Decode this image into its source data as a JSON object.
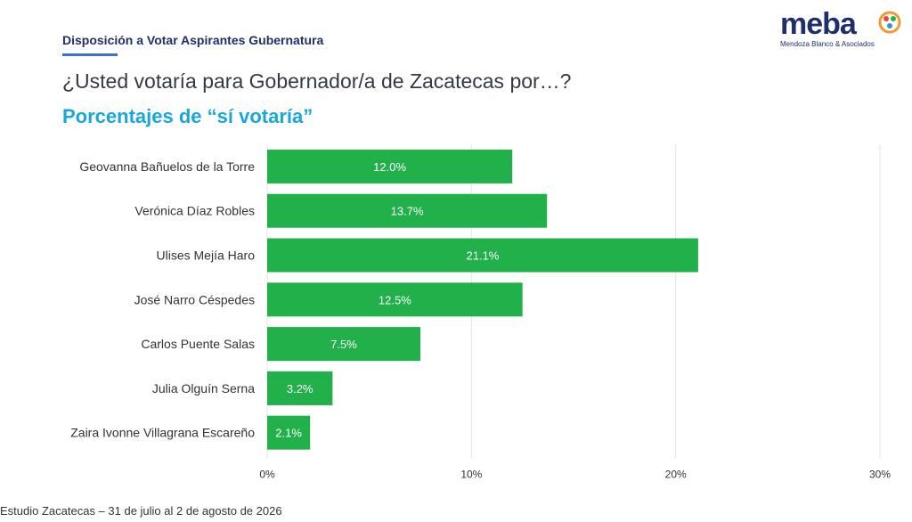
{
  "header": {
    "kicker": "Disposición a Votar Aspirantes Gubernatura",
    "question": "¿Usted votaría para Gobernador/a de Zacatecas por…?",
    "subtitle": "Porcentajes de “sí votaría”"
  },
  "logo": {
    "word": "meba",
    "sub": "Mendoza Blanco & Asociados",
    "icon": "meba-logo-mark-icon"
  },
  "footer": {
    "text": "Estudio Zacatecas – 31 de julio al 2 de agosto de 2026"
  },
  "colors": {
    "bar": "#22b04b",
    "bar_label": "#ffffff",
    "grid": "#e3e3e3",
    "kicker": "#1f2f6b",
    "subtitle": "#1aa6d9",
    "rule": "#3b6fd0"
  },
  "chart_data": {
    "type": "bar",
    "orientation": "horizontal",
    "categories": [
      "Geovanna Bañuelos de la Torre",
      "Verónica Díaz Robles",
      "Ulises Mejía Haro",
      "José Narro Céspedes",
      "Carlos Puente Salas",
      "Julia Olguín Serna",
      "Zaira Ivonne Villagrana Escareño"
    ],
    "values": [
      12.0,
      13.7,
      21.1,
      12.5,
      7.5,
      3.2,
      2.1
    ],
    "data_labels": [
      "12.0%",
      "13.7%",
      "21.1%",
      "12.5%",
      "7.5%",
      "3.2%",
      "2.1%"
    ],
    "xlim": [
      0,
      30
    ],
    "xticks": [
      0,
      10,
      20,
      30
    ],
    "xtick_labels": [
      "0%",
      "10%",
      "20%",
      "30%"
    ],
    "grid": true,
    "legend": false
  }
}
